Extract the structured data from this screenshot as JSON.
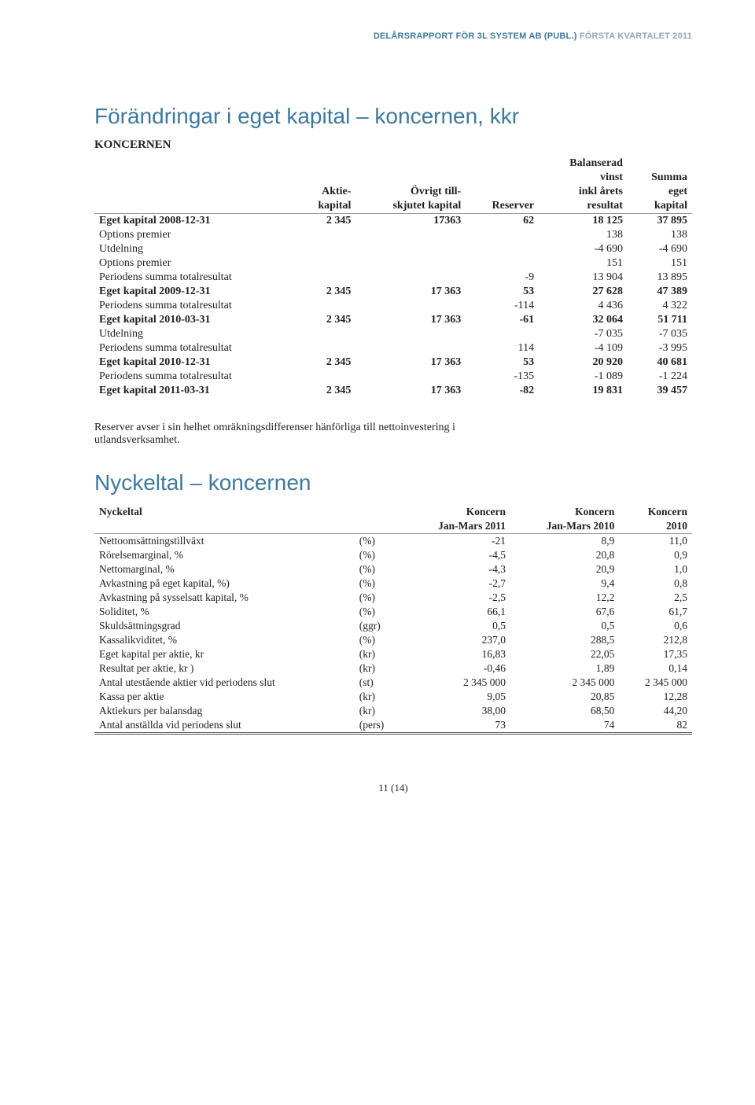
{
  "header": {
    "left": "DELÅRSRAPPORT FÖR 3L SYSTEM AB (PUBL.)",
    "right": " FÖRSTA KVARTALET 2011"
  },
  "section1": {
    "title": "Förändringar i eget kapital – koncernen, kkr",
    "subhead": "KONCERNEN",
    "cols": [
      [
        "",
        ""
      ],
      [
        "Aktie-",
        "kapital"
      ],
      [
        "Övrigt till-",
        "skjutet kapital"
      ],
      [
        "",
        "Reserver"
      ],
      [
        "Balanserad",
        "vinst",
        "inkl årets",
        "resultat"
      ],
      [
        "Summa",
        "eget",
        "kapital"
      ]
    ],
    "rows": [
      {
        "label": "Eget kapital 2008-12-31",
        "v": [
          "2 345",
          "17363",
          "62",
          "18 125",
          "37 895"
        ],
        "bold": true
      },
      {
        "label": "Options premier",
        "v": [
          "",
          "",
          "",
          "138",
          "138"
        ]
      },
      {
        "label": "Utdelning",
        "v": [
          "",
          "",
          "",
          "-4 690",
          "-4 690"
        ]
      },
      {
        "label": "Options premier",
        "v": [
          "",
          "",
          "",
          "151",
          "151"
        ]
      },
      {
        "label": "Periodens summa totalresultat",
        "v": [
          "",
          "",
          "-9",
          "13 904",
          "13 895"
        ]
      },
      {
        "label": "Eget kapital 2009-12-31",
        "v": [
          "2 345",
          "17 363",
          "53",
          "27 628",
          "47 389"
        ],
        "bold": true
      },
      {
        "label": "Periodens summa totalresultat",
        "v": [
          "",
          "",
          "-114",
          "4 436",
          "4 322"
        ]
      },
      {
        "label": "Eget kapital 2010-03-31",
        "v": [
          "2 345",
          "17 363",
          "-61",
          "32 064",
          "51 711"
        ],
        "bold": true
      },
      {
        "label": "Utdelning",
        "v": [
          "",
          "",
          "",
          "-7 035",
          "-7 035"
        ]
      },
      {
        "label": "Periodens summa totalresultat",
        "v": [
          "",
          "",
          "114",
          "-4 109",
          "-3 995"
        ]
      },
      {
        "label": "Eget kapital 2010-12-31",
        "v": [
          "2 345",
          "17 363",
          "53",
          "20 920",
          "40 681"
        ],
        "bold": true
      },
      {
        "label": "Periodens summa totalresultat",
        "v": [
          "",
          "",
          "-135",
          "-1 089",
          "-1 224"
        ]
      },
      {
        "label": "Eget kapital 2011-03-31",
        "v": [
          "2 345",
          "17 363",
          "-82",
          "19 831",
          "39 457"
        ],
        "bold": true
      }
    ]
  },
  "note": "Reserver avser i sin helhet omräkningsdifferenser hänförliga till nettoinvestering i utlandsverksamhet.",
  "section2": {
    "title": "Nyckeltal – koncernen",
    "heading_label": "Nyckeltal",
    "cols": [
      [
        "Koncern",
        "Jan-Mars 2011"
      ],
      [
        "Koncern",
        "Jan-Mars 2010"
      ],
      [
        "Koncern",
        "2010"
      ]
    ],
    "rows": [
      {
        "label": "Nettoomsättningstillväxt",
        "unit": "(%)",
        "v": [
          "-21",
          "8,9",
          "11,0"
        ]
      },
      {
        "label": "Rörelsemarginal, %",
        "unit": "(%)",
        "v": [
          "-4,5",
          "20,8",
          "0,9"
        ]
      },
      {
        "label": "Nettomarginal, %",
        "unit": "(%)",
        "v": [
          "-4,3",
          "20,9",
          "1,0"
        ]
      },
      {
        "label": "Avkastning på eget kapital, %)",
        "unit": "(%)",
        "v": [
          "-2,7",
          "9,4",
          "0,8"
        ]
      },
      {
        "label": "Avkastning på sysselsatt kapital, %",
        "unit": "(%)",
        "v": [
          "-2,5",
          "12,2",
          "2,5"
        ]
      },
      {
        "label": "Soliditet, %",
        "unit": "(%)",
        "v": [
          "66,1",
          "67,6",
          "61,7"
        ]
      },
      {
        "label": "Skuldsättningsgrad",
        "unit": "(ggr)",
        "v": [
          "0,5",
          "0,5",
          "0,6"
        ]
      },
      {
        "label": "Kassalikviditet, %",
        "unit": "(%)",
        "v": [
          "237,0",
          "288,5",
          "212,8"
        ]
      },
      {
        "label": "Eget kapital per aktie, kr",
        "unit": "(kr)",
        "v": [
          "16,83",
          "22,05",
          "17,35"
        ]
      },
      {
        "label": "Resultat per aktie, kr )",
        "unit": "(kr)",
        "v": [
          "-0,46",
          "1,89",
          "0,14"
        ]
      },
      {
        "label": "Antal utestående aktier vid periodens slut",
        "unit": "(st)",
        "v": [
          "2 345 000",
          "2 345 000",
          "2 345 000"
        ]
      },
      {
        "label": "Kassa per aktie",
        "unit": "(kr)",
        "v": [
          "9,05",
          "20,85",
          "12,28"
        ]
      },
      {
        "label": "Aktiekurs per balansdag",
        "unit": "(kr)",
        "v": [
          "38,00",
          "68,50",
          "44,20"
        ]
      },
      {
        "label": "Antal anställda vid periodens slut",
        "unit": "(pers)",
        "v": [
          "73",
          "74",
          "82"
        ]
      }
    ]
  },
  "pagenum": "11 (14)"
}
